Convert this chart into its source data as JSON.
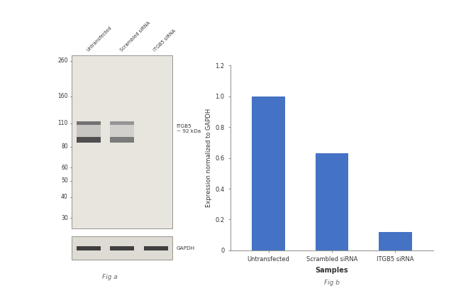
{
  "bar_categories": [
    "Untransfected",
    "Scrambled siRNA",
    "ITGB5 siRNA"
  ],
  "bar_values": [
    1.0,
    0.63,
    0.12
  ],
  "bar_color": "#4472c4",
  "bar_ylabel": "Expression normalized to GAPDH",
  "bar_xlabel": "Samples",
  "bar_ylim": [
    0,
    1.2
  ],
  "bar_yticks": [
    0,
    0.2,
    0.4,
    0.6,
    0.8,
    1.0,
    1.2
  ],
  "fig_label_a": "Fig a",
  "fig_label_b": "Fig b",
  "wb_lane_labels": [
    "Untransfected",
    "Scrambled siRNA",
    "ITGB5 siRNA"
  ],
  "wb_mw_markers": [
    260,
    160,
    110,
    80,
    60,
    50,
    40,
    30
  ],
  "wb_annotation_itgb5": "ITGB5\n~ 92 kDa",
  "wb_annotation_gapdh": "GAPDH",
  "blot_bg_color": "#e8e4de",
  "gapdh_bg_color": "#dedad4",
  "band_dark_color": "#2a2520",
  "band_mid_color": "#3a3530",
  "background_color": "#ffffff"
}
